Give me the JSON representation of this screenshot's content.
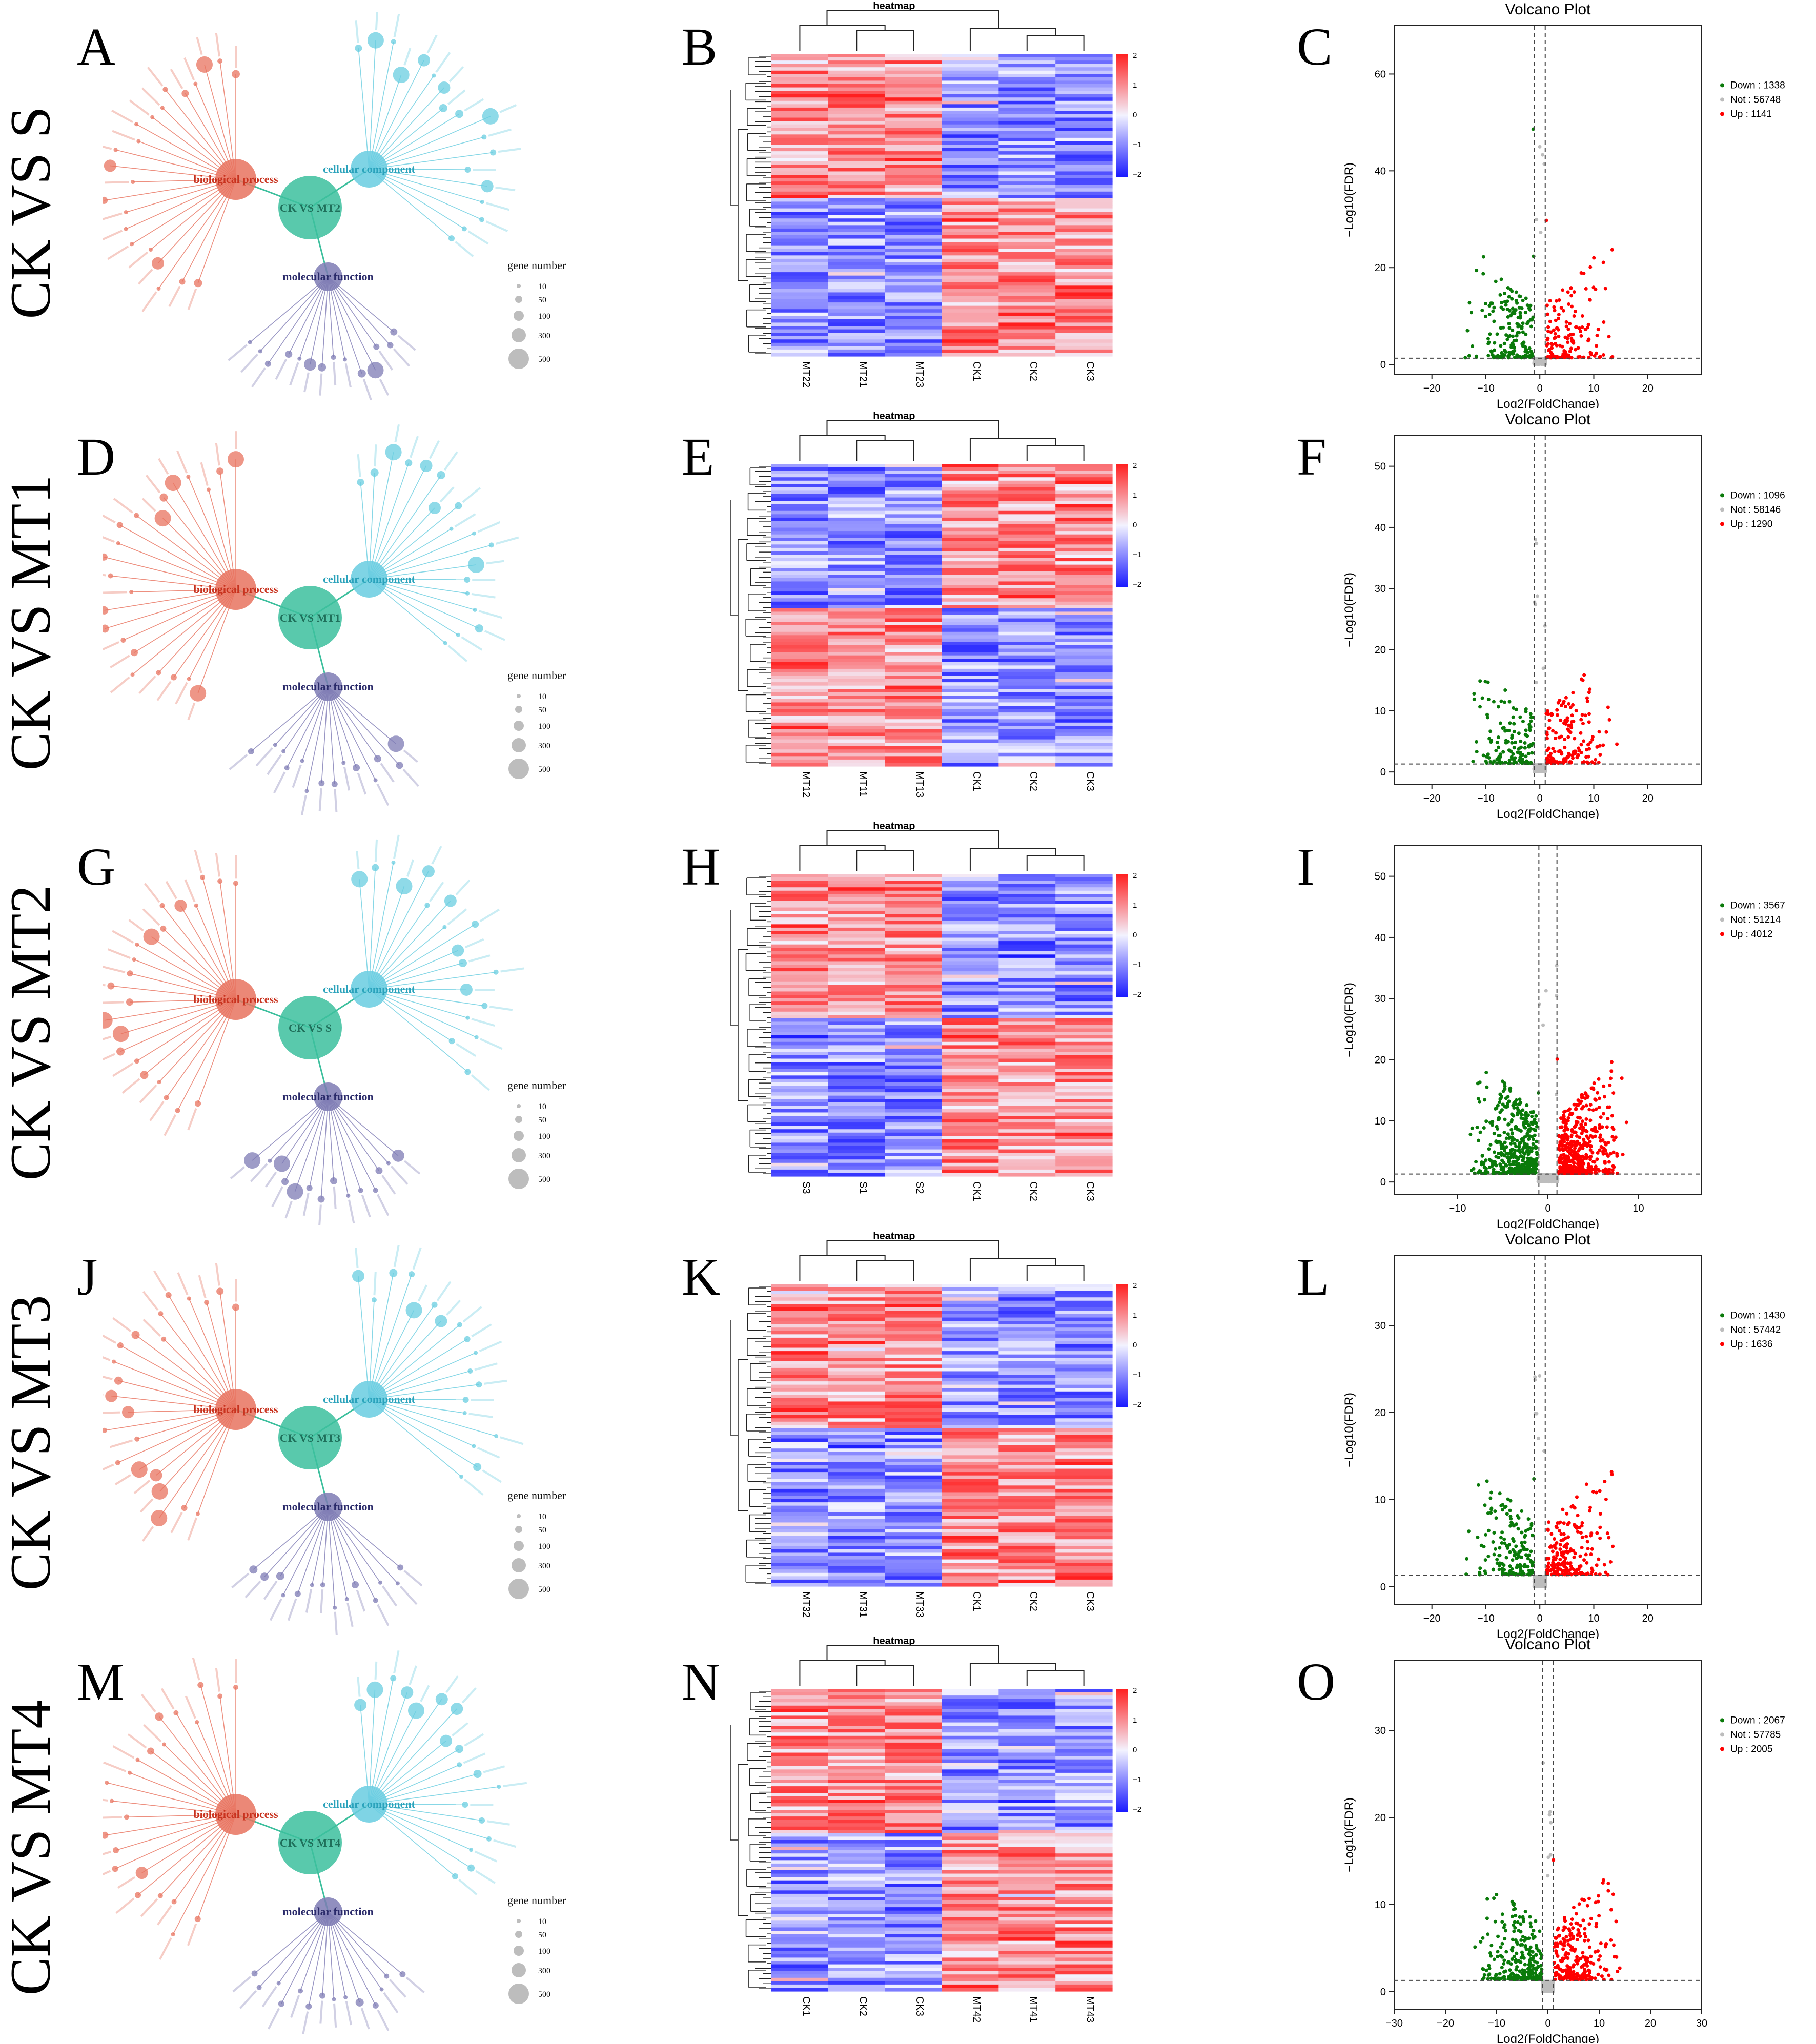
{
  "colors": {
    "bp": "#e8735f",
    "cc": "#69cde0",
    "mf": "#7e7bb4",
    "center": "#3cbf9d",
    "hm_high": "#ff1f1f",
    "hm_mid": "#f3f3ff",
    "hm_low": "#1a1aff",
    "vp_down": "#0a7a0a",
    "vp_up": "#ff0000",
    "vp_not": "#bdbdbd"
  },
  "rows": [
    {
      "row_label": "CK VS S",
      "letters": [
        "A",
        "B",
        "C"
      ],
      "go": {
        "center": "CK VS MT2",
        "bp": "biological process",
        "cc": "cellular component",
        "mf": "molecular function",
        "legend_title": "gene number",
        "legend_values": [
          "10",
          "50",
          "100",
          "300",
          "500"
        ]
      },
      "heatmap": {
        "title": "heatmap",
        "samples": [
          "MT22",
          "MT21",
          "MT23",
          "CK1",
          "CK2",
          "CK3"
        ],
        "scale": [
          "2",
          "1",
          "0",
          "−1",
          "−2"
        ]
      },
      "volcano": {
        "title": "Volcano Plot",
        "xlabel": "Log2(FoldChange)",
        "ylabel": "−Log10(FDR)",
        "legend": [
          "Down : 1338",
          "Not : 56748",
          "Up : 1141"
        ],
        "xticks": [
          "−20",
          "−10",
          "0",
          "10",
          "20"
        ],
        "yticks": [
          "0",
          "20",
          "40",
          "60"
        ]
      }
    },
    {
      "row_label": "CK VS MT1",
      "letters": [
        "D",
        "E",
        "F"
      ],
      "go": {
        "center": "CK VS MT1",
        "bp": "biological process",
        "cc": "cellular component",
        "mf": "molecular function",
        "legend_title": "gene number",
        "legend_values": [
          "10",
          "50",
          "100",
          "300",
          "500"
        ]
      },
      "heatmap": {
        "title": "heatmap",
        "samples": [
          "MT12",
          "MT11",
          "MT13",
          "CK1",
          "CK2",
          "CK3"
        ],
        "scale": [
          "2",
          "1",
          "0",
          "−1",
          "−2"
        ]
      },
      "volcano": {
        "title": "Volcano Plot",
        "xlabel": "Log2(FoldChange)",
        "ylabel": "−Log10(FDR)",
        "legend": [
          "Down : 1096",
          "Not : 58146",
          "Up : 1290"
        ],
        "xticks": [
          "−20",
          "−10",
          "0",
          "10",
          "20"
        ],
        "yticks": [
          "0",
          "10",
          "20",
          "30",
          "40",
          "50"
        ]
      }
    },
    {
      "row_label": "CK VS MT2",
      "letters": [
        "G",
        "H",
        "I"
      ],
      "go": {
        "center": "CK VS S",
        "bp": "biological process",
        "cc": "cellular component",
        "mf": "molecular function",
        "legend_title": "gene number",
        "legend_values": [
          "10",
          "50",
          "100",
          "300",
          "500"
        ]
      },
      "heatmap": {
        "title": "heatmap",
        "samples": [
          "S3",
          "S1",
          "S2",
          "CK1",
          "CK2",
          "CK3"
        ],
        "scale": [
          "2",
          "1",
          "0",
          "−1",
          "−2"
        ]
      },
      "volcano": {
        "title": "",
        "xlabel": "Log2(FoldChange)",
        "ylabel": "−Log10(FDR)",
        "legend": [
          "Down : 3567",
          "Not : 51214",
          "Up : 4012"
        ],
        "xticks": [
          "−10",
          "0",
          "10"
        ],
        "yticks": [
          "0",
          "10",
          "20",
          "30",
          "40",
          "50"
        ]
      }
    },
    {
      "row_label": "CK VS MT3",
      "letters": [
        "J",
        "K",
        "L"
      ],
      "go": {
        "center": "CK VS MT3",
        "bp": "biological process",
        "cc": "cellular component",
        "mf": "molecular function",
        "legend_title": "gene number",
        "legend_values": [
          "10",
          "50",
          "100",
          "300",
          "500"
        ]
      },
      "heatmap": {
        "title": "heatmap",
        "samples": [
          "MT32",
          "MT31",
          "MT33",
          "CK1",
          "CK2",
          "CK3"
        ],
        "scale": [
          "2",
          "1",
          "0",
          "−1",
          "−2"
        ]
      },
      "volcano": {
        "title": "Volcano Plot",
        "xlabel": "Log2(FoldChange)",
        "ylabel": "−Log10(FDR)",
        "legend": [
          "Down : 1430",
          "Not : 57442",
          "Up : 1636"
        ],
        "xticks": [
          "−20",
          "−10",
          "0",
          "10",
          "20"
        ],
        "yticks": [
          "0",
          "10",
          "20",
          "30"
        ]
      }
    },
    {
      "row_label": "CK VS MT4",
      "letters": [
        "M",
        "N",
        "O"
      ],
      "go": {
        "center": "CK VS MT4",
        "bp": "biological process",
        "cc": "cellular component",
        "mf": "molecular function",
        "legend_title": "gene number",
        "legend_values": [
          "10",
          "50",
          "100",
          "300",
          "500"
        ]
      },
      "heatmap": {
        "title": "heatmap",
        "samples": [
          "CK1",
          "CK2",
          "CK3",
          "MT42",
          "MT41",
          "MT43"
        ],
        "scale": [
          "2",
          "1",
          "0",
          "−1",
          "−2"
        ]
      },
      "volcano": {
        "title": "Volcano Plot",
        "xlabel": "Log2(FoldChange)",
        "ylabel": "−Log10(FDR)",
        "legend": [
          "Down : 2067",
          "Not : 57785",
          "Up : 2005"
        ],
        "xticks": [
          "−30",
          "−20",
          "−10",
          "0",
          "10",
          "20",
          "30"
        ],
        "yticks": [
          "0",
          "10",
          "20",
          "30"
        ]
      }
    }
  ],
  "chart_data": [
    {
      "type": "scatter",
      "title": "Volcano Plot",
      "comparison": "CK VS S",
      "xlabel": "Log2(FoldChange)",
      "ylabel": "-Log10(FDR)",
      "xlim": [
        -27,
        30
      ],
      "ylim": [
        -2,
        70
      ],
      "counts": {
        "Down": 1338,
        "Not": 56748,
        "Up": 1141
      }
    },
    {
      "type": "scatter",
      "title": "Volcano Plot",
      "comparison": "CK VS MT1",
      "xlabel": "Log2(FoldChange)",
      "ylabel": "-Log10(FDR)",
      "xlim": [
        -27,
        30
      ],
      "ylim": [
        -2,
        55
      ],
      "counts": {
        "Down": 1096,
        "Not": 58146,
        "Up": 1290
      }
    },
    {
      "type": "scatter",
      "title": "",
      "comparison": "CK VS MT2",
      "xlabel": "Log2(FoldChange)",
      "ylabel": "-Log10(FDR)",
      "xlim": [
        -17,
        17
      ],
      "ylim": [
        -2,
        55
      ],
      "counts": {
        "Down": 3567,
        "Not": 51214,
        "Up": 4012
      }
    },
    {
      "type": "scatter",
      "title": "Volcano Plot",
      "comparison": "CK VS MT3",
      "xlabel": "Log2(FoldChange)",
      "ylabel": "-Log10(FDR)",
      "xlim": [
        -27,
        30
      ],
      "ylim": [
        -2,
        38
      ],
      "counts": {
        "Down": 1430,
        "Not": 57442,
        "Up": 1636
      }
    },
    {
      "type": "scatter",
      "title": "Volcano Plot",
      "comparison": "CK VS MT4",
      "xlabel": "Log2(FoldChange)",
      "ylabel": "-Log10(FDR)",
      "xlim": [
        -30,
        30
      ],
      "ylim": [
        -2,
        38
      ],
      "counts": {
        "Down": 2067,
        "Not": 57785,
        "Up": 2005
      }
    }
  ]
}
